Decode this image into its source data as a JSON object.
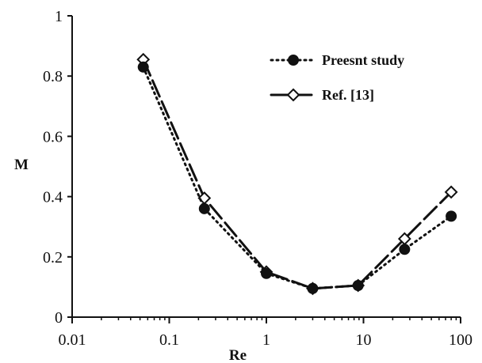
{
  "chart_data": {
    "type": "line",
    "title": "",
    "xlabel": "Re",
    "ylabel": "M",
    "x_scale": "log",
    "xlim": [
      0.01,
      100
    ],
    "ylim": [
      0,
      1
    ],
    "x_ticks": [
      0.01,
      0.1,
      1,
      10,
      100
    ],
    "x_tick_labels": [
      "0.01",
      "0.1",
      "1",
      "10",
      "100"
    ],
    "y_ticks": [
      0,
      0.2,
      0.4,
      0.6,
      0.8,
      1
    ],
    "y_tick_labels": [
      "0",
      "0.2",
      "0.4",
      "0.6",
      "0.8",
      "1"
    ],
    "grid": false,
    "legend_position": "top-right",
    "series": [
      {
        "name": "Preesnt study",
        "line_style": "dotted",
        "marker": "filled-circle",
        "color": "#111111",
        "x": [
          0.054,
          0.23,
          1,
          3,
          8.8,
          26.5,
          80
        ],
        "y": [
          0.83,
          0.36,
          0.145,
          0.095,
          0.105,
          0.225,
          0.335
        ]
      },
      {
        "name": "Ref. [13]",
        "line_style": "long-dash",
        "marker": "open-diamond",
        "color": "#111111",
        "x": [
          0.054,
          0.23,
          1,
          3,
          8.8,
          26.5,
          80
        ],
        "y": [
          0.855,
          0.395,
          0.15,
          0.095,
          0.105,
          0.26,
          0.415
        ]
      }
    ]
  }
}
